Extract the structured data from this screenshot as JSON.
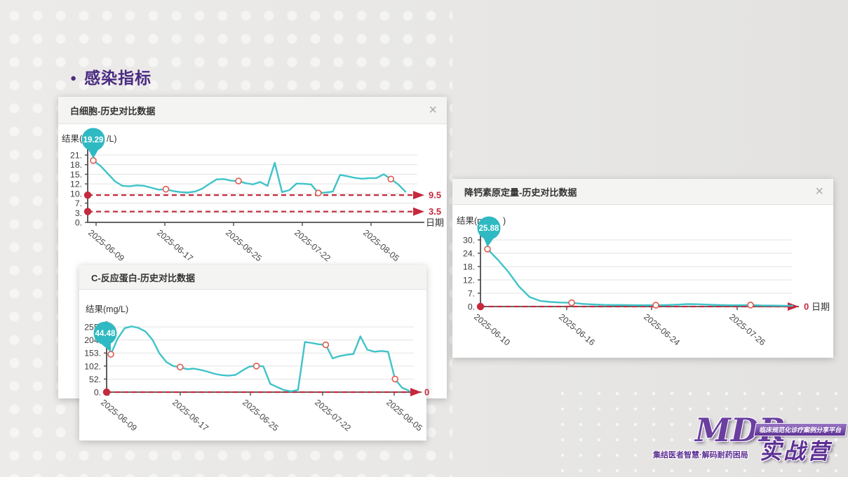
{
  "slide": {
    "title": "感染指标"
  },
  "colors": {
    "accent_purple": "#4a2b82",
    "line_teal": "#3fc3c9",
    "ref_red": "#c5293d",
    "marker_red": "#e05a50",
    "balloon_teal": "#2fb9c2",
    "grid_gray": "#e3e3e3",
    "axis_gray": "#4d4d4d"
  },
  "panels": [
    {
      "title": "白细胞-历史对比数据",
      "close_icon": "×"
    },
    {
      "title": "C-反应蛋白-历史对比数据",
      "close_icon": "×"
    },
    {
      "title": "降钙素原定量-历史对比数据",
      "close_icon": "×"
    }
  ],
  "chart_data": [
    {
      "type": "line",
      "title": "白细胞-历史对比数据",
      "ylabel_prefix": "结果(",
      "ylabel_suffix": "/L)",
      "balloon_value": "19.29",
      "yticks": [
        "21.",
        "18.",
        "15.",
        "12.",
        "10.",
        "7.",
        "3.",
        "0."
      ],
      "ytick_values": [
        21,
        18,
        15,
        12,
        10,
        7,
        3,
        0
      ],
      "xticks": [
        "2025-06-09",
        "2025-06-17",
        "2025-06-25",
        "2025-07-22",
        "2025-08-05"
      ],
      "xlabel": "日期",
      "values": [
        19.29,
        17.6,
        15.2,
        12.8,
        11.6,
        11.5,
        11.7,
        11.6,
        11.2,
        10.8,
        10.9,
        10.5,
        10.3,
        10.2,
        10.4,
        11.0,
        12.0,
        13.4,
        13.5,
        13.0,
        12.9,
        12.2,
        11.9,
        12.6,
        11.6,
        18.6,
        10.3,
        10.7,
        12.1,
        12.0,
        11.9,
        10.1,
        10.2,
        10.4,
        14.8,
        14.4,
        13.9,
        13.6,
        13.8,
        13.8,
        15.0,
        13.5,
        11.9,
        10.4
      ],
      "marker_indices": [
        0,
        10,
        20,
        31,
        41
      ],
      "reference_lines": [
        {
          "value": 9.5,
          "label": "9.5"
        },
        {
          "value": 3.5,
          "label": "3.5"
        }
      ],
      "legend": "none",
      "grid": "horizontal"
    },
    {
      "type": "line",
      "title": "C-反应蛋白-历史对比数据",
      "ylabel_prefix": "结果(mg/L)",
      "ylabel_suffix": "",
      "balloon_value": "44.48",
      "yticks": [
        "255.",
        "204.",
        "153.",
        "102.",
        "52.",
        "0."
      ],
      "ytick_values": [
        255,
        204,
        153,
        102,
        52,
        0
      ],
      "xticks": [
        "2025-06-09",
        "2025-06-17",
        "2025-06-25",
        "2025-07-22",
        "2025-08-05"
      ],
      "xlabel": "",
      "values": [
        148,
        210,
        250,
        257,
        251,
        237,
        205,
        152,
        118,
        102,
        98,
        90,
        92,
        87,
        80,
        72,
        67,
        65,
        68,
        85,
        100,
        102,
        101,
        33,
        20,
        8,
        3,
        9,
        196,
        192,
        187,
        185,
        132,
        141,
        146,
        149,
        218,
        166,
        158,
        161,
        158,
        52,
        18,
        6
      ],
      "marker_indices": [
        0,
        10,
        21,
        31,
        41
      ],
      "reference_lines": [
        {
          "value": 0,
          "label": "0"
        }
      ],
      "legend": "none",
      "grid": "horizontal"
    },
    {
      "type": "line",
      "title": "降钙素原定量-历史对比数据",
      "ylabel_prefix": "结果(n",
      "ylabel_suffix": ")",
      "balloon_value": "25.88",
      "yticks": [
        "30.",
        "24.",
        "18.",
        "12.",
        "7.",
        "0."
      ],
      "ytick_values": [
        30,
        24,
        18,
        12,
        7,
        0
      ],
      "xticks": [
        "2025-06-10",
        "2025-06-16",
        "2025-06-24",
        "2025-07-26"
      ],
      "xlabel": "日期",
      "values": [
        25.88,
        21,
        15.5,
        9.5,
        5,
        3,
        2.4,
        2.1,
        2.0,
        1.4,
        1.1,
        0.9,
        0.8,
        0.8,
        0.7,
        0.7,
        0.7,
        0.8,
        1.0,
        1.3,
        1.2,
        1.0,
        0.8,
        0.7,
        0.7,
        0.8,
        0.6,
        0.5,
        0.45,
        0.4
      ],
      "marker_indices": [
        0,
        8,
        16,
        25
      ],
      "reference_lines": [
        {
          "value": 0,
          "label": "0"
        }
      ],
      "legend": "none",
      "grid": "horizontal"
    }
  ],
  "logo": {
    "mdr": "MDR",
    "camp": "实战营",
    "tagline_right": "临床规范化诊疗案例分享平台",
    "tagline_left": "集结医者智慧·解码耐药困局"
  }
}
